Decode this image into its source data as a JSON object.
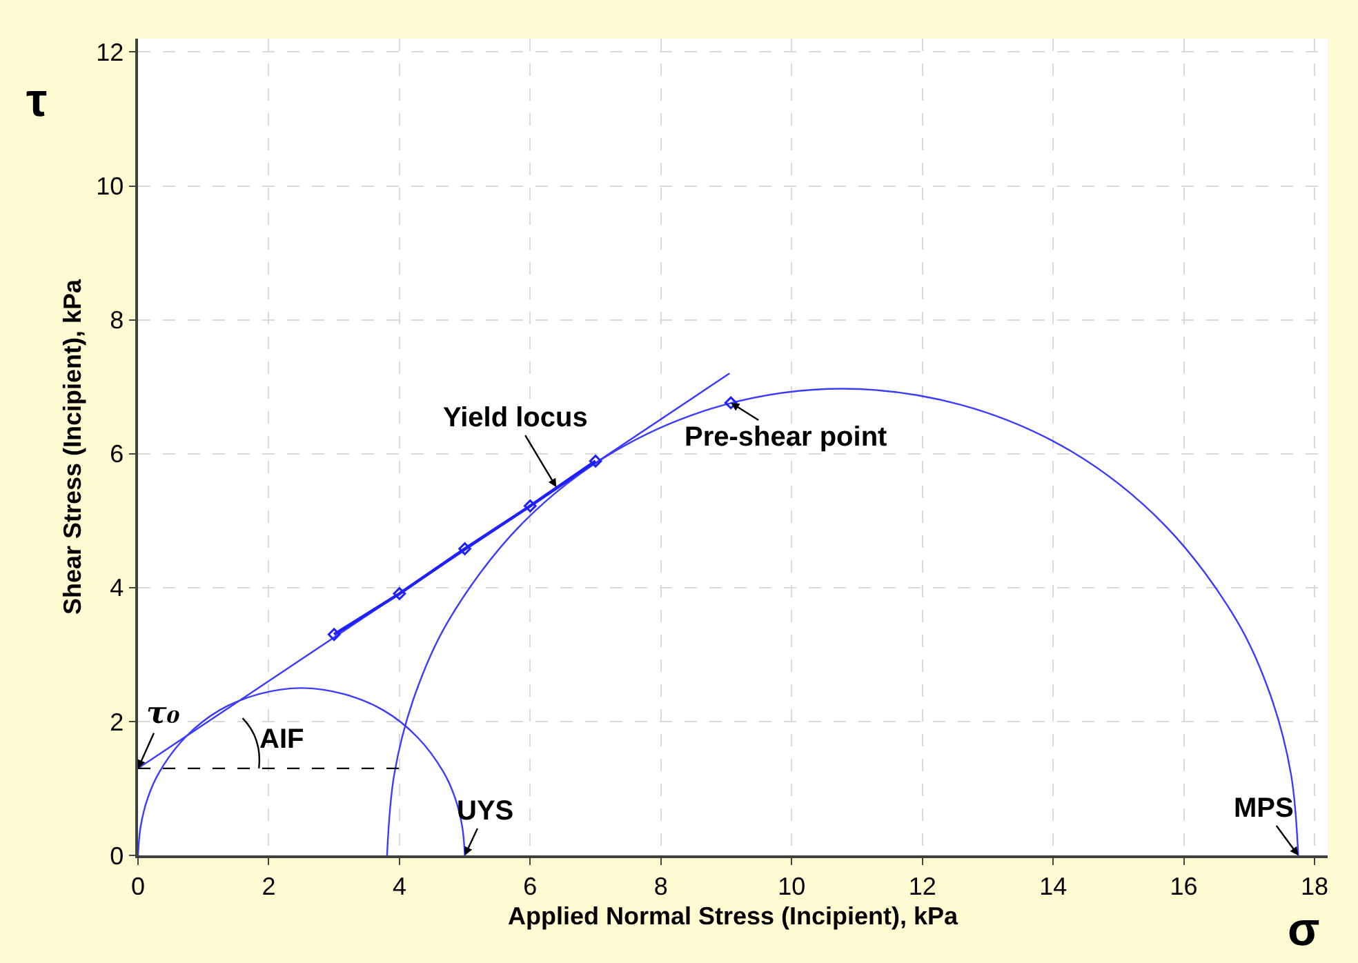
{
  "chart_data": {
    "type": "line",
    "xlabel": "Applied Normal Stress (Incipient), kPa",
    "ylabel": "Shear Stress (Incipient), kPa",
    "xlim": [
      0,
      18.2
    ],
    "ylim": [
      0,
      12.2
    ],
    "xticks": [
      0,
      2,
      4,
      6,
      8,
      10,
      12,
      14,
      16,
      18
    ],
    "yticks": [
      0,
      2,
      4,
      6,
      8,
      10,
      12
    ],
    "grid": true,
    "series": [
      {
        "color": "#3b3bff",
        "x": [
          0,
          9.05
        ],
        "values": [
          1.3,
          7.2
        ],
        "line_style": "solid"
      },
      {
        "color": "#3b3bff",
        "x": [
          0,
          0.04,
          0.15,
          0.33,
          0.73,
          1.25,
          1.85,
          2.5,
          3.15,
          3.75,
          4.27,
          4.67,
          4.85,
          4.96,
          5
        ],
        "values": [
          0,
          0.43,
          0.86,
          1.25,
          1.77,
          2.17,
          2.41,
          2.5,
          2.41,
          2.17,
          1.77,
          1.25,
          0.86,
          0.43,
          0
        ],
        "line_style": "solid"
      },
      {
        "color": "#3b3bff",
        "x": [
          3.81,
          3.92,
          4.23,
          4.74,
          5.85,
          7.3,
          8.97,
          10.78,
          12.59,
          14.27,
          15.71,
          16.82,
          17.33,
          17.64,
          17.75
        ],
        "values": [
          0,
          1.21,
          2.38,
          3.49,
          4.93,
          6.04,
          6.73,
          6.97,
          6.73,
          6.04,
          4.93,
          3.49,
          2.38,
          1.21,
          0
        ],
        "line_style": "solid"
      },
      {
        "color": "#2020ff",
        "x": [
          3,
          4,
          5,
          6,
          7
        ],
        "values": [
          3.3,
          3.91,
          4.58,
          5.22,
          5.89
        ],
        "marker": "diamond",
        "line_style": "solid"
      },
      {
        "type": "scatter",
        "color": "#2020ff",
        "x": [
          9.07
        ],
        "values": [
          6.76
        ],
        "marker": "diamond"
      },
      {
        "color": "#000000",
        "x": [
          0,
          4
        ],
        "values": [
          1.3,
          1.3
        ],
        "line_style": "dashed"
      }
    ],
    "annotations": [
      {
        "text": "Yield locus",
        "x": 6.4,
        "y": 5.5
      },
      {
        "text": "Pre-shear point",
        "x": 9.07,
        "y": 6.76
      },
      {
        "text": "τ₀",
        "x": 0,
        "y": 1.3
      },
      {
        "text": "UYS",
        "x": 5,
        "y": 0
      },
      {
        "text": "MPS",
        "x": 17.75,
        "y": 0
      },
      {
        "text": "AIF",
        "x": 1.6,
        "y": 1.3
      },
      "σ",
      "τ"
    ]
  }
}
